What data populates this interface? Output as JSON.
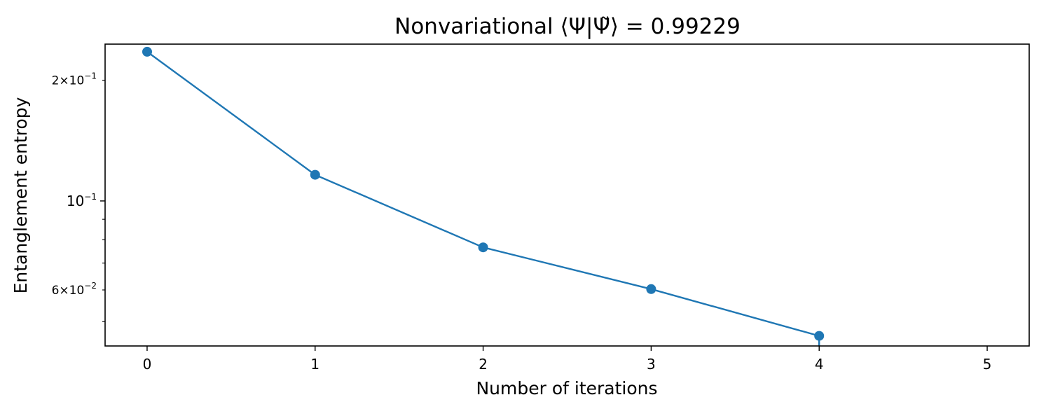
{
  "chart_data": {
    "type": "line",
    "title": {
      "prefix": "Nonvariational ",
      "bra_ket": "⟨Ψ|Ψ̃⟩",
      "equals": " = ",
      "value": "0.99229"
    },
    "xlabel": "Number of iterations",
    "ylabel": "Entanglement entropy",
    "xlim": [
      -0.25,
      5.25
    ],
    "ylim": [
      0.0435,
      0.246
    ],
    "yscale": "log",
    "grid": false,
    "x_ticks": [
      {
        "value": 0,
        "label": "0"
      },
      {
        "value": 1,
        "label": "1"
      },
      {
        "value": 2,
        "label": "2"
      },
      {
        "value": 3,
        "label": "3"
      },
      {
        "value": 4,
        "label": "4"
      },
      {
        "value": 5,
        "label": "5"
      }
    ],
    "y_ticks_major": [
      {
        "value": 0.1,
        "mantissa": "",
        "base": "10",
        "exp": "−1"
      }
    ],
    "y_ticks_minor_labeled": [
      {
        "value": 0.2,
        "mantissa": "2",
        "base": "10",
        "exp": "−1"
      },
      {
        "value": 0.06,
        "mantissa": "6",
        "base": "10",
        "exp": "−2"
      }
    ],
    "y_ticks_minor_unlabeled": [
      0.05,
      0.07,
      0.08,
      0.09
    ],
    "series": [
      {
        "color": "#1f77b4",
        "marker": "circle",
        "x": [
          0,
          1,
          2,
          3,
          4
        ],
        "y": [
          0.2355,
          0.1162,
          0.0766,
          0.0603,
          0.0461
        ],
        "drop_to_floor_after_last": true
      }
    ]
  }
}
